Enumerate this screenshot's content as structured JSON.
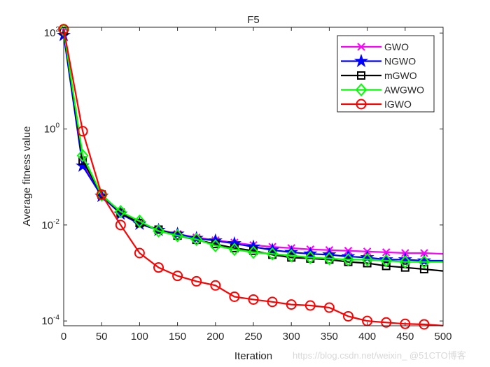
{
  "chart_data": {
    "type": "line",
    "title": "F5",
    "xlabel": "Iteration",
    "ylabel": "Average fitness value",
    "xlim": [
      0,
      500
    ],
    "ylim_log10": [
      -4.1,
      2.12
    ],
    "yscale": "log",
    "grid": false,
    "legend_position": "top-right",
    "xticks": [
      "0",
      "50",
      "100",
      "150",
      "200",
      "250",
      "300",
      "350",
      "400",
      "450",
      "500"
    ],
    "yticks": [
      {
        "base": "10",
        "exp": "2"
      },
      {
        "base": "10",
        "exp": "0"
      },
      {
        "base": "10",
        "exp": "-2"
      },
      {
        "base": "10",
        "exp": "-4"
      }
    ],
    "x": [
      0,
      25,
      50,
      75,
      100,
      125,
      150,
      175,
      200,
      225,
      250,
      275,
      300,
      325,
      350,
      375,
      400,
      425,
      450,
      475,
      500
    ],
    "series": [
      {
        "name": "GWO",
        "color": "#ff00ff",
        "marker": "x",
        "values": [
          110,
          0.2,
          0.04,
          0.018,
          0.011,
          0.008,
          0.0065,
          0.0055,
          0.0048,
          0.0043,
          0.0038,
          0.0035,
          0.0033,
          0.0031,
          0.003,
          0.0029,
          0.0028,
          0.0027,
          0.0026,
          0.0026,
          0.0025
        ]
      },
      {
        "name": "NGWO",
        "color": "#0000ff",
        "marker": "star",
        "values": [
          90,
          0.17,
          0.04,
          0.017,
          0.0105,
          0.0078,
          0.0065,
          0.0053,
          0.0047,
          0.0041,
          0.0035,
          0.003,
          0.0027,
          0.0025,
          0.0024,
          0.0022,
          0.0021,
          0.0019,
          0.0019,
          0.0018,
          0.0018
        ]
      },
      {
        "name": "mGWO",
        "color": "#000000",
        "marker": "square",
        "values": [
          110,
          0.22,
          0.043,
          0.018,
          0.011,
          0.008,
          0.006,
          0.0049,
          0.004,
          0.0033,
          0.0029,
          0.0024,
          0.0021,
          0.002,
          0.0019,
          0.0017,
          0.0016,
          0.0014,
          0.0013,
          0.0012,
          0.0011
        ]
      },
      {
        "name": "AWGWO",
        "color": "#00ff00",
        "marker": "diamond",
        "values": [
          115,
          0.28,
          0.042,
          0.019,
          0.012,
          0.0075,
          0.006,
          0.005,
          0.0037,
          0.0031,
          0.0027,
          0.0025,
          0.0023,
          0.0021,
          0.002,
          0.0019,
          0.0019,
          0.0018,
          0.0017,
          0.0017,
          0.0017
        ]
      },
      {
        "name": "IGWO",
        "color": "#ff0000",
        "marker": "circle",
        "values": [
          120,
          0.9,
          0.043,
          0.01,
          0.0026,
          0.0013,
          0.00087,
          0.00067,
          0.00055,
          0.00032,
          0.00028,
          0.00025,
          0.00022,
          0.00021,
          0.00019,
          0.000125,
          0.0001,
          9.3e-05,
          8.7e-05,
          8.5e-05,
          8e-05
        ]
      }
    ]
  },
  "watermark": "https://blog.csdn.net/weixin_  @51CTO博客"
}
